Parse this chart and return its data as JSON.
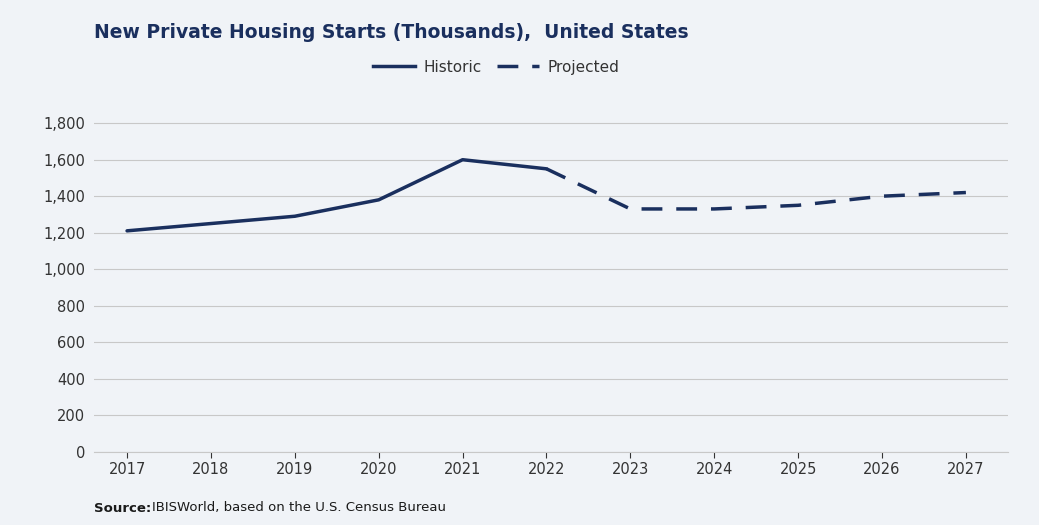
{
  "title": "New Private Housing Starts (Thousands),  United States",
  "source_bold": "Source:",
  "source_text": "IBISWorld, based on the U.S. Census Bureau",
  "line_color": "#1a2f5e",
  "historic_years": [
    2017,
    2018,
    2019,
    2020,
    2021,
    2022
  ],
  "historic_values": [
    1210,
    1250,
    1290,
    1380,
    1600,
    1550
  ],
  "projected_years": [
    2022,
    2023,
    2024,
    2025,
    2026,
    2027
  ],
  "projected_values": [
    1550,
    1330,
    1330,
    1350,
    1400,
    1420
  ],
  "ylim": [
    0,
    1900
  ],
  "yticks": [
    0,
    200,
    400,
    600,
    800,
    1000,
    1200,
    1400,
    1600,
    1800
  ],
  "xlim": [
    2016.6,
    2027.5
  ],
  "xticks": [
    2017,
    2018,
    2019,
    2020,
    2021,
    2022,
    2023,
    2024,
    2025,
    2026,
    2027
  ],
  "grid_color": "#c8c8c8",
  "background_color": "#f0f3f7",
  "plot_bg_color": "#f0f3f7",
  "legend_historic": "Historic",
  "legend_projected": "Projected",
  "title_fontsize": 13.5,
  "axis_fontsize": 10.5,
  "source_fontsize": 9.5,
  "line_width": 2.5
}
